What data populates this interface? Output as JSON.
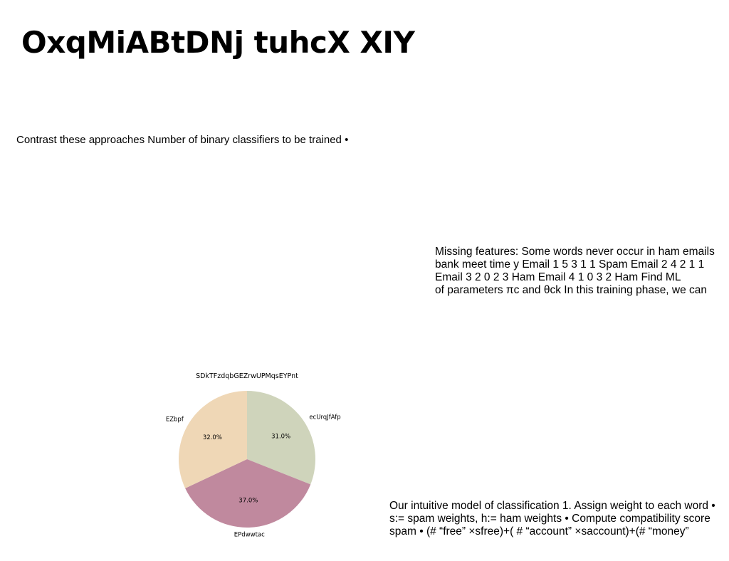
{
  "slide": {
    "title": "OxqMiABtDNj tuhcX XIY",
    "contrast_line": "Contrast these approaches Number of binary classifiers to be trained •",
    "missing_features": {
      "lines": [
        "Missing features: Some words never occur in ham emails",
        "bank meet time y Email 1 5 3 1 1 Spam Email 2 4 2 1 1",
        "Email 3 2 0 2 3 Ham Email 4 1 0 3 2 Ham Find ML",
        "of parameters πc and θck In this training phase, we can"
      ]
    },
    "intuitive_model": {
      "lines": [
        "Our intuitive model of classification 1. Assign weight to each word •",
        "s:= spam weights, h:= ham weights • Compute compatibility score",
        "spam • (# “free” ×sfree)+( # “account” ×saccount)+(# “money”"
      ]
    }
  },
  "chart_data": {
    "type": "pie",
    "title": "SDkTFzdqbGEZrwUPMqsEYPnt",
    "start_angle_deg": 90,
    "direction": "clockwise",
    "slices": [
      {
        "label": "ecUrqJfAfp",
        "value": 31.0,
        "pct_label": "31.0%",
        "color": "#cfd4bb"
      },
      {
        "label": "EPdwwtac",
        "value": 37.0,
        "pct_label": "37.0%",
        "color": "#c0899e"
      },
      {
        "label": "EZbpf",
        "value": 32.0,
        "pct_label": "32.0%",
        "color": "#efd7b6"
      }
    ]
  }
}
